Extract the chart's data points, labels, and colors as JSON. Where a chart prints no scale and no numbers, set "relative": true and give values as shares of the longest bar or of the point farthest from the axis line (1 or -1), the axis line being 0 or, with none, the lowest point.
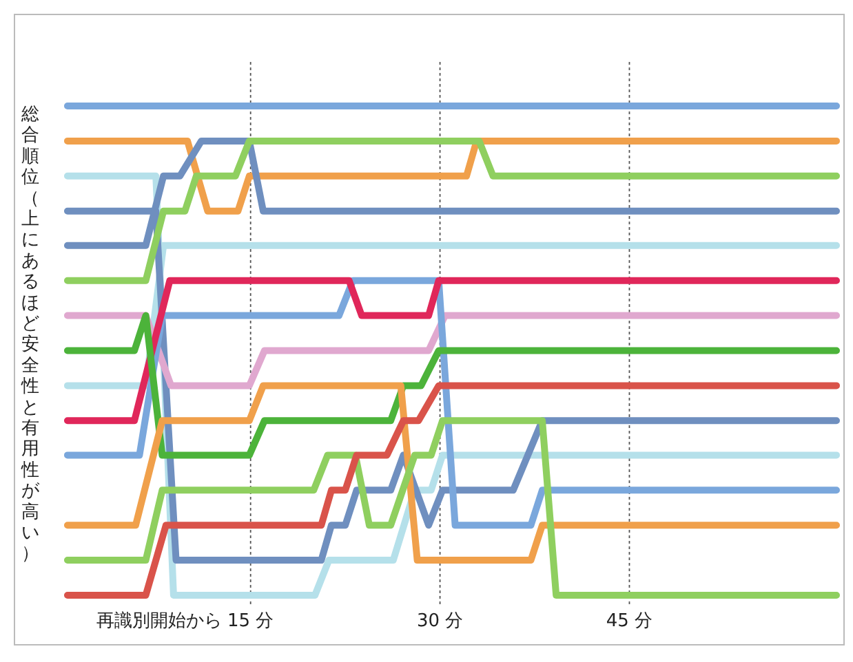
{
  "chart_data": {
    "type": "line",
    "relative": true,
    "xlabel": "再識別開始から",
    "ylabel": "総合順位（上にあるほど安全性と有用性が高い）",
    "xlim": [
      -3.7,
      62
    ],
    "xticks": [
      {
        "value": 15,
        "label": "15 分"
      },
      {
        "value": 30,
        "label": "30 分"
      },
      {
        "value": 45,
        "label": "45 分"
      }
    ],
    "grid": "x",
    "line_style": "solid",
    "series": [
      {
        "color": "#7aa7dc",
        "x": [
          0.5,
          61.4
        ],
        "values": [
          1,
          1
        ]
      },
      {
        "color": "#f0a04b",
        "x": [
          0.5,
          10.0,
          11.6,
          14.0,
          14.9,
          32.1,
          32.9,
          61.4
        ],
        "values": [
          0.935,
          0.935,
          0.805,
          0.805,
          0.87,
          0.87,
          0.935,
          0.935
        ]
      },
      {
        "color": "#b5e0ea",
        "x": [
          0.5,
          7.5,
          8.9,
          20.1,
          21.2,
          26.3,
          28.0,
          29.3,
          30.2,
          61.4
        ],
        "values": [
          0.87,
          0.87,
          0.092,
          0.092,
          0.157,
          0.157,
          0.287,
          0.287,
          0.352,
          0.352
        ]
      },
      {
        "color": "#b5e0ea",
        "x": [
          0.5,
          6.7,
          8.1,
          61.4
        ],
        "values": [
          0.481,
          0.481,
          0.741,
          0.741
        ]
      },
      {
        "color": "#6f8fbf",
        "x": [
          0.5,
          7.5,
          9.1,
          20.6,
          21.4,
          22.5,
          23.4,
          26.1,
          27.1,
          29.1,
          30.2,
          35.8,
          38.1,
          61.4
        ],
        "values": [
          0.805,
          0.805,
          0.157,
          0.157,
          0.222,
          0.222,
          0.287,
          0.287,
          0.352,
          0.222,
          0.287,
          0.287,
          0.416,
          0.416
        ]
      },
      {
        "color": "#6f8fbf",
        "x": [
          0.5,
          6.7,
          8.1,
          9.4,
          11.1,
          14.9,
          16.0,
          61.4
        ],
        "values": [
          0.741,
          0.741,
          0.87,
          0.87,
          0.935,
          0.935,
          0.805,
          0.805
        ]
      },
      {
        "color": "#8fcf5f",
        "x": [
          0.5,
          6.7,
          8.1,
          9.8,
          10.7,
          13.8,
          14.9,
          33.1,
          34.2,
          61.4
        ],
        "values": [
          0.676,
          0.676,
          0.805,
          0.805,
          0.87,
          0.87,
          0.935,
          0.935,
          0.87,
          0.87
        ]
      },
      {
        "color": "#e0a8cf",
        "x": [
          0.5,
          6.7,
          8.7,
          14.9,
          16.1,
          29.1,
          30.4,
          61.4
        ],
        "values": [
          0.611,
          0.611,
          0.481,
          0.481,
          0.546,
          0.546,
          0.611,
          0.611
        ]
      },
      {
        "color": "#7aa7dc",
        "x": [
          0.5,
          6.2,
          8.0,
          22.0,
          23.1,
          29.9,
          31.2,
          37.2,
          38.1,
          61.4
        ],
        "values": [
          0.352,
          0.352,
          0.611,
          0.611,
          0.676,
          0.676,
          0.222,
          0.222,
          0.287,
          0.287
        ]
      },
      {
        "color": "#e0275a",
        "x": [
          0.5,
          5.8,
          8.6,
          22.8,
          23.8,
          29.1,
          29.9,
          61.4
        ],
        "values": [
          0.416,
          0.416,
          0.676,
          0.676,
          0.611,
          0.611,
          0.676,
          0.676
        ]
      },
      {
        "color": "#4cb33a",
        "x": [
          0.5,
          5.8,
          6.7,
          8.0,
          14.9,
          16.1,
          26.1,
          27.1,
          28.5,
          29.9,
          61.4
        ],
        "values": [
          0.546,
          0.546,
          0.611,
          0.352,
          0.352,
          0.416,
          0.416,
          0.481,
          0.481,
          0.546,
          0.546
        ]
      },
      {
        "color": "#f0a04b",
        "x": [
          0.5,
          5.9,
          8.0,
          14.9,
          16.0,
          26.9,
          28.2,
          37.2,
          38.1,
          61.4
        ],
        "values": [
          0.222,
          0.222,
          0.416,
          0.416,
          0.481,
          0.481,
          0.157,
          0.157,
          0.222,
          0.222
        ]
      },
      {
        "color": "#8fcf5f",
        "x": [
          0.5,
          6.7,
          8.0,
          20.0,
          21.1,
          23.3,
          24.4,
          26.1,
          28.0,
          29.3,
          30.2,
          38.1,
          39.2,
          61.4
        ],
        "values": [
          0.157,
          0.157,
          0.287,
          0.287,
          0.352,
          0.352,
          0.222,
          0.222,
          0.352,
          0.352,
          0.416,
          0.416,
          0.092,
          0.092
        ]
      },
      {
        "color": "#d9534a",
        "x": [
          0.5,
          6.7,
          8.3,
          20.6,
          21.4,
          22.5,
          23.4,
          25.8,
          27.1,
          28.3,
          29.9,
          61.4
        ],
        "values": [
          0.092,
          0.092,
          0.222,
          0.222,
          0.287,
          0.287,
          0.352,
          0.352,
          0.416,
          0.416,
          0.481,
          0.481
        ]
      }
    ]
  }
}
